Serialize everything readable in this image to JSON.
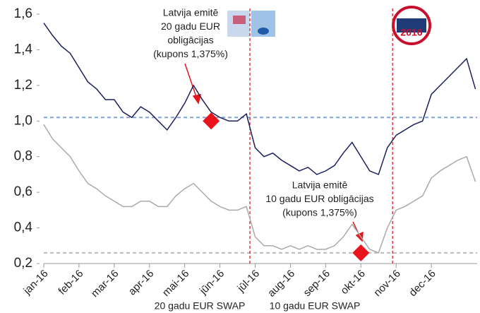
{
  "chart_data": {
    "type": "line",
    "x": [
      0,
      0.25,
      0.5,
      0.75,
      1,
      1.25,
      1.5,
      1.75,
      2,
      2.25,
      2.5,
      2.75,
      3,
      3.25,
      3.5,
      3.75,
      4,
      4.25,
      4.5,
      4.75,
      5,
      5.25,
      5.5,
      5.75,
      6,
      6.25,
      6.5,
      6.75,
      7,
      7.25,
      7.5,
      7.75,
      8,
      8.25,
      8.5,
      8.75,
      9,
      9.25,
      9.5,
      9.75,
      10,
      10.25,
      10.5,
      10.75,
      11,
      11.25,
      11.5,
      11.75,
      12,
      12.25
    ],
    "series": [
      {
        "name": "20 gadu EUR SWAP",
        "color": "#1b1f5e",
        "values": [
          1.55,
          1.48,
          1.42,
          1.38,
          1.3,
          1.22,
          1.18,
          1.12,
          1.12,
          1.05,
          1.02,
          1.08,
          1.05,
          1.0,
          0.95,
          1.02,
          1.1,
          1.2,
          1.12,
          1.05,
          1.02,
          1.0,
          1.0,
          1.04,
          0.85,
          0.8,
          0.82,
          0.78,
          0.75,
          0.72,
          0.74,
          0.7,
          0.72,
          0.75,
          0.82,
          0.88,
          0.8,
          0.72,
          0.7,
          0.85,
          0.92,
          0.95,
          0.98,
          1.0,
          1.15,
          1.2,
          1.25,
          1.3,
          1.35,
          1.18
        ]
      },
      {
        "name": "10 gadu EUR SWAP",
        "color": "#aaaaaa",
        "values": [
          0.98,
          0.9,
          0.85,
          0.8,
          0.72,
          0.65,
          0.62,
          0.58,
          0.55,
          0.52,
          0.52,
          0.55,
          0.55,
          0.52,
          0.52,
          0.58,
          0.62,
          0.65,
          0.6,
          0.55,
          0.52,
          0.5,
          0.5,
          0.52,
          0.35,
          0.3,
          0.3,
          0.28,
          0.3,
          0.28,
          0.3,
          0.28,
          0.28,
          0.3,
          0.35,
          0.42,
          0.35,
          0.28,
          0.26,
          0.4,
          0.5,
          0.52,
          0.55,
          0.58,
          0.68,
          0.72,
          0.75,
          0.78,
          0.8,
          0.66
        ]
      }
    ],
    "xlim": [
      0,
      12.3
    ],
    "xticks": [
      {
        "value": 0,
        "label": "jan-16"
      },
      {
        "value": 1,
        "label": "feb-16"
      },
      {
        "value": 2,
        "label": "mar-16"
      },
      {
        "value": 3,
        "label": "apr-16"
      },
      {
        "value": 4,
        "label": "mai-16"
      },
      {
        "value": 5,
        "label": "jūn-16"
      },
      {
        "value": 6,
        "label": "jūl-16"
      },
      {
        "value": 7,
        "label": "aug-16"
      },
      {
        "value": 8,
        "label": "sep-16"
      },
      {
        "value": 9,
        "label": "okt-16"
      },
      {
        "value": 10,
        "label": "nov-16"
      },
      {
        "value": 11,
        "label": "dec-16"
      }
    ],
    "ylim": [
      0.2,
      1.6
    ],
    "yticks": [
      {
        "value": 0.2,
        "label": "0,2"
      },
      {
        "value": 0.4,
        "label": "0,4"
      },
      {
        "value": 0.6,
        "label": "0,6"
      },
      {
        "value": 0.8,
        "label": "0,8"
      },
      {
        "value": 1.0,
        "label": "1,0"
      },
      {
        "value": 1.2,
        "label": "1,2"
      },
      {
        "value": 1.4,
        "label": "1,4"
      },
      {
        "value": 1.6,
        "label": "1,6"
      }
    ],
    "reference_lines": [
      {
        "value": 1.02,
        "color": "#7fa3d6"
      },
      {
        "value": 0.26,
        "color": "#bbbbbb"
      }
    ],
    "event_lines": [
      {
        "value": 5.85,
        "color": "#e02020"
      },
      {
        "value": 9.9,
        "color": "#e02020"
      }
    ],
    "markers": [
      {
        "x": 4.75,
        "y": 1.0,
        "color": "#e8131b"
      },
      {
        "x": 9.0,
        "y": 0.26,
        "color": "#e8131b"
      }
    ],
    "annotations": [
      {
        "lines": [
          "Latvija emitē",
          "20 gadu EUR",
          "obligācijas",
          "(kupons 1,375%)"
        ]
      },
      {
        "lines": [
          "Latvija emitē",
          "10 gadu EUR obligācijas",
          "(kupons 1,375%)"
        ]
      }
    ]
  }
}
